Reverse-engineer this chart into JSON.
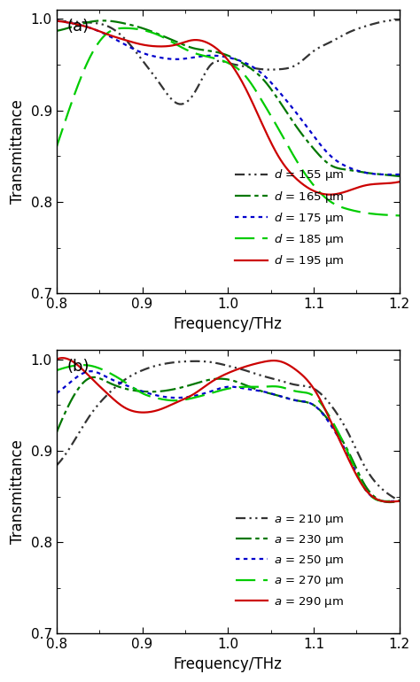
{
  "xlim": [
    0.8,
    1.2
  ],
  "ylim": [
    0.7,
    1.01
  ],
  "xlabel": "Frequency/THz",
  "ylabel": "Transmittance",
  "panel_a": {
    "label": "(a)",
    "curves": [
      {
        "label": "$d$ = 155 μm",
        "color": "#333333",
        "dash_pattern": [
          5,
          2,
          1,
          2,
          1,
          2
        ],
        "x": [
          0.8,
          0.82,
          0.84,
          0.86,
          0.88,
          0.9,
          0.92,
          0.94,
          0.96,
          0.98,
          1.0,
          1.02,
          1.04,
          1.06,
          1.08,
          1.1,
          1.12,
          1.14,
          1.16,
          1.18,
          1.2
        ],
        "y": [
          0.998,
          0.997,
          0.996,
          0.992,
          0.978,
          0.955,
          0.93,
          0.908,
          0.918,
          0.95,
          0.952,
          0.948,
          0.945,
          0.945,
          0.95,
          0.965,
          0.975,
          0.985,
          0.992,
          0.997,
          0.999
        ]
      },
      {
        "label": "$d$ = 165 μm",
        "color": "#007700",
        "dash_pattern": [
          8,
          2,
          2,
          2
        ],
        "x": [
          0.8,
          0.82,
          0.84,
          0.86,
          0.88,
          0.9,
          0.92,
          0.94,
          0.96,
          0.98,
          1.0,
          1.02,
          1.04,
          1.06,
          1.08,
          1.1,
          1.12,
          1.14,
          1.16,
          1.18,
          1.2
        ],
        "y": [
          0.987,
          0.992,
          0.997,
          0.998,
          0.995,
          0.99,
          0.983,
          0.975,
          0.968,
          0.965,
          0.96,
          0.95,
          0.935,
          0.91,
          0.882,
          0.858,
          0.84,
          0.835,
          0.832,
          0.83,
          0.828
        ]
      },
      {
        "label": "$d$ = 175 μm",
        "color": "#0000cc",
        "dash_pattern": [
          2,
          2
        ],
        "x": [
          0.8,
          0.82,
          0.84,
          0.86,
          0.88,
          0.9,
          0.92,
          0.94,
          0.96,
          0.98,
          1.0,
          1.02,
          1.04,
          1.06,
          1.08,
          1.1,
          1.12,
          1.14,
          1.16,
          1.18,
          1.2
        ],
        "y": [
          0.998,
          0.995,
          0.99,
          0.982,
          0.972,
          0.963,
          0.958,
          0.956,
          0.958,
          0.96,
          0.958,
          0.952,
          0.94,
          0.92,
          0.897,
          0.872,
          0.85,
          0.838,
          0.832,
          0.83,
          0.83
        ]
      },
      {
        "label": "$d$ = 185 μm",
        "color": "#00cc00",
        "dash_pattern": [
          10,
          4
        ],
        "x": [
          0.8,
          0.82,
          0.84,
          0.86,
          0.88,
          0.9,
          0.92,
          0.94,
          0.96,
          0.98,
          1.0,
          1.02,
          1.04,
          1.06,
          1.08,
          1.1,
          1.12,
          1.14,
          1.16,
          1.18,
          1.2
        ],
        "y": [
          0.86,
          0.915,
          0.96,
          0.985,
          0.99,
          0.988,
          0.982,
          0.972,
          0.963,
          0.958,
          0.952,
          0.938,
          0.91,
          0.878,
          0.845,
          0.818,
          0.8,
          0.792,
          0.788,
          0.786,
          0.785
        ]
      },
      {
        "label": "$d$ = 195 μm",
        "color": "#cc0000",
        "dash_pattern": null,
        "x": [
          0.8,
          0.82,
          0.84,
          0.86,
          0.88,
          0.9,
          0.92,
          0.94,
          0.96,
          0.98,
          1.0,
          1.02,
          1.04,
          1.06,
          1.08,
          1.1,
          1.12,
          1.14,
          1.16,
          1.18,
          1.2
        ],
        "y": [
          0.998,
          0.995,
          0.99,
          0.983,
          0.977,
          0.972,
          0.97,
          0.972,
          0.977,
          0.972,
          0.955,
          0.925,
          0.885,
          0.848,
          0.825,
          0.812,
          0.808,
          0.812,
          0.818,
          0.82,
          0.822
        ]
      }
    ]
  },
  "panel_b": {
    "label": "(b)",
    "curves": [
      {
        "label": "$a$ = 210 μm",
        "color": "#333333",
        "dash_pattern": [
          5,
          2,
          1,
          2,
          1,
          2
        ],
        "x": [
          0.8,
          0.82,
          0.84,
          0.86,
          0.88,
          0.9,
          0.92,
          0.94,
          0.96,
          0.98,
          1.0,
          1.02,
          1.04,
          1.06,
          1.08,
          1.1,
          1.12,
          1.14,
          1.16,
          1.18,
          1.2
        ],
        "y": [
          0.884,
          0.91,
          0.94,
          0.962,
          0.978,
          0.988,
          0.994,
          0.997,
          0.998,
          0.997,
          0.993,
          0.988,
          0.982,
          0.977,
          0.972,
          0.968,
          0.95,
          0.92,
          0.882,
          0.858,
          0.845
        ]
      },
      {
        "label": "$a$ = 230 μm",
        "color": "#007700",
        "dash_pattern": [
          8,
          2,
          2,
          2
        ],
        "x": [
          0.8,
          0.82,
          0.84,
          0.86,
          0.88,
          0.9,
          0.92,
          0.94,
          0.96,
          0.98,
          1.0,
          1.02,
          1.04,
          1.06,
          1.08,
          1.1,
          1.12,
          1.14,
          1.16,
          1.18,
          1.2
        ],
        "y": [
          0.92,
          0.96,
          0.98,
          0.975,
          0.968,
          0.965,
          0.965,
          0.968,
          0.973,
          0.978,
          0.978,
          0.972,
          0.965,
          0.96,
          0.955,
          0.95,
          0.93,
          0.9,
          0.862,
          0.845,
          0.845
        ]
      },
      {
        "label": "$a$ = 250 μm",
        "color": "#0000cc",
        "dash_pattern": [
          2,
          2
        ],
        "x": [
          0.8,
          0.82,
          0.84,
          0.86,
          0.88,
          0.9,
          0.92,
          0.94,
          0.96,
          0.98,
          1.0,
          1.02,
          1.04,
          1.06,
          1.08,
          1.1,
          1.12,
          1.14,
          1.16,
          1.18,
          1.2
        ],
        "y": [
          0.963,
          0.978,
          0.987,
          0.98,
          0.972,
          0.965,
          0.96,
          0.958,
          0.96,
          0.965,
          0.97,
          0.968,
          0.965,
          0.96,
          0.955,
          0.95,
          0.928,
          0.895,
          0.858,
          0.845,
          0.845
        ]
      },
      {
        "label": "$a$ = 270 μm",
        "color": "#00cc00",
        "dash_pattern": [
          10,
          4
        ],
        "x": [
          0.8,
          0.82,
          0.84,
          0.86,
          0.88,
          0.9,
          0.92,
          0.94,
          0.96,
          0.98,
          1.0,
          1.02,
          1.04,
          1.06,
          1.08,
          1.1,
          1.12,
          1.14,
          1.16,
          1.18,
          1.2
        ],
        "y": [
          0.988,
          0.993,
          0.993,
          0.986,
          0.975,
          0.963,
          0.957,
          0.955,
          0.958,
          0.963,
          0.968,
          0.97,
          0.97,
          0.97,
          0.965,
          0.96,
          0.935,
          0.898,
          0.858,
          0.845,
          0.845
        ]
      },
      {
        "label": "$a$ = 290 μm",
        "color": "#cc0000",
        "dash_pattern": null,
        "x": [
          0.8,
          0.82,
          0.84,
          0.86,
          0.88,
          0.9,
          0.92,
          0.94,
          0.96,
          0.98,
          1.0,
          1.02,
          1.04,
          1.06,
          1.08,
          1.1,
          1.12,
          1.14,
          1.16,
          1.18,
          1.2
        ],
        "y": [
          1.0,
          0.997,
          0.98,
          0.962,
          0.947,
          0.942,
          0.945,
          0.953,
          0.962,
          0.975,
          0.985,
          0.992,
          0.997,
          0.998,
          0.988,
          0.968,
          0.932,
          0.892,
          0.858,
          0.845,
          0.845
        ]
      }
    ]
  }
}
